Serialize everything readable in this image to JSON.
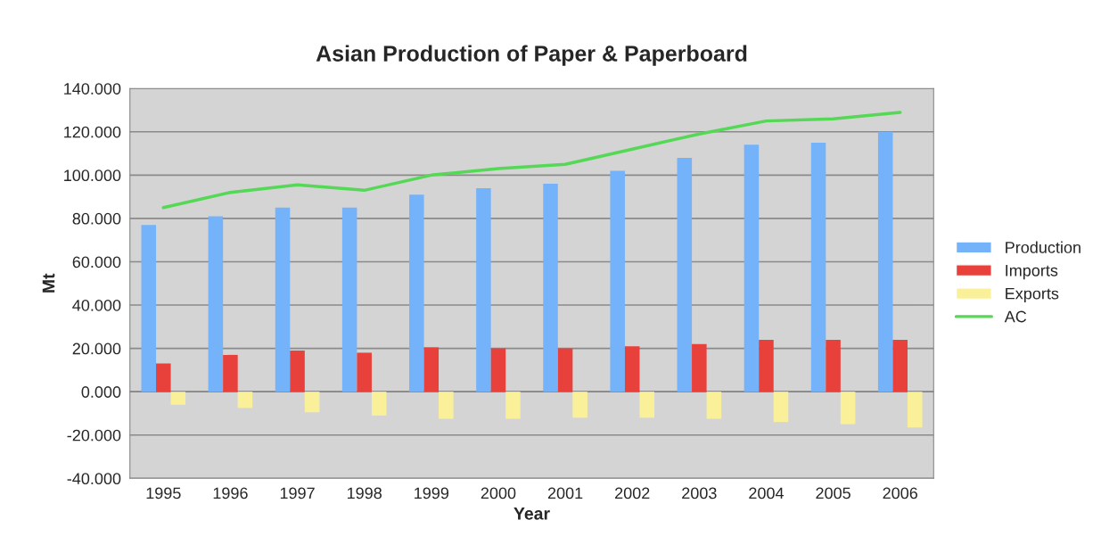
{
  "chart_data": {
    "type": "bar",
    "title": "Asian Production of Paper & Paperboard",
    "xlabel": "Year",
    "ylabel": "Mt",
    "categories": [
      "1995",
      "1996",
      "1997",
      "1998",
      "1999",
      "2000",
      "2001",
      "2002",
      "2003",
      "2004",
      "2005",
      "2006"
    ],
    "series": [
      {
        "name": "Production",
        "color": "#74b2f9",
        "values": [
          77,
          81,
          85,
          85,
          91,
          94,
          96,
          102,
          108,
          114,
          115,
          120
        ]
      },
      {
        "name": "Imports",
        "color": "#e8403a",
        "values": [
          13,
          17,
          19,
          18,
          20.5,
          20,
          20,
          21,
          22,
          24,
          24,
          24
        ]
      },
      {
        "name": "Exports",
        "color": "#fbf09a",
        "values": [
          -6,
          -7.5,
          -9.5,
          -11,
          -12.5,
          -12.5,
          -12,
          -12,
          -12.5,
          -14,
          -15,
          -16.5
        ]
      },
      {
        "name": "AC",
        "type": "line",
        "color": "#55d855",
        "values": [
          85,
          92,
          95.5,
          93,
          100,
          103,
          105,
          112,
          119,
          125,
          126,
          129
        ]
      }
    ],
    "ylim": [
      -40,
      140
    ],
    "yticks": [
      {
        "value": -40,
        "label": "-40.000"
      },
      {
        "value": -20,
        "label": "-20.000"
      },
      {
        "value": 0,
        "label": "0.000"
      },
      {
        "value": 20,
        "label": "20.000"
      },
      {
        "value": 40,
        "label": "40.000"
      },
      {
        "value": 60,
        "label": "60.000"
      },
      {
        "value": 80,
        "label": "80.000"
      },
      {
        "value": 100,
        "label": "100.000"
      },
      {
        "value": 120,
        "label": "120.000"
      },
      {
        "value": 140,
        "label": "140.000"
      }
    ],
    "grid": "y",
    "legend": "right",
    "marker": "none",
    "line_style": "solid"
  }
}
